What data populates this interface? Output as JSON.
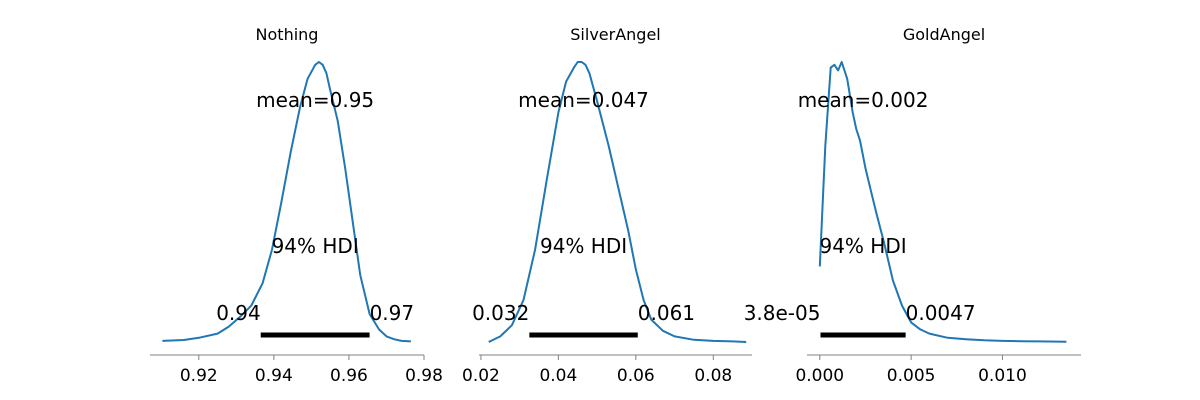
{
  "chart_data": [
    {
      "type": "line",
      "title": "Nothing",
      "mean_label": "mean=0.95",
      "hdi_label": "94% HDI",
      "hdi_low_label": "0.94",
      "hdi_high_label": "0.97",
      "hdi": [
        0.9365,
        0.9655
      ],
      "xlim": [
        0.907,
        0.98
      ],
      "ticks": [
        0.92,
        0.94,
        0.96,
        0.98
      ],
      "tick_labels": [
        "0.92",
        "0.94",
        "0.96",
        "0.98"
      ],
      "color": "#1f77b4",
      "density": {
        "x": [
          0.9103,
          0.916,
          0.92,
          0.925,
          0.928,
          0.931,
          0.934,
          0.937,
          0.9395,
          0.942,
          0.9445,
          0.947,
          0.949,
          0.951,
          0.952,
          0.953,
          0.954,
          0.955,
          0.957,
          0.959,
          0.961,
          0.963,
          0.9655,
          0.968,
          0.97,
          0.972,
          0.974,
          0.9765
        ],
        "y": [
          0.004,
          0.007,
          0.015,
          0.03,
          0.055,
          0.09,
          0.13,
          0.21,
          0.33,
          0.5,
          0.68,
          0.84,
          0.94,
          0.99,
          1.0,
          0.99,
          0.96,
          0.9,
          0.79,
          0.62,
          0.43,
          0.24,
          0.1,
          0.045,
          0.02,
          0.01,
          0.004,
          0.002
        ]
      }
    },
    {
      "type": "line",
      "title": "SilverAngel",
      "mean_label": "mean=0.047",
      "hdi_label": "94% HDI",
      "hdi_low_label": "0.032",
      "hdi_high_label": "0.061",
      "hdi": [
        0.0325,
        0.0605
      ],
      "xlim": [
        0.0195,
        0.09
      ],
      "ticks": [
        0.02,
        0.04,
        0.06,
        0.08
      ],
      "tick_labels": [
        "0.02",
        "0.04",
        "0.06",
        "0.08"
      ],
      "color": "#1f77b4",
      "density": {
        "x": [
          0.022,
          0.025,
          0.028,
          0.031,
          0.034,
          0.037,
          0.04,
          0.042,
          0.044,
          0.045,
          0.046,
          0.047,
          0.048,
          0.05,
          0.053,
          0.056,
          0.058,
          0.06,
          0.062,
          0.064,
          0.067,
          0.07,
          0.075,
          0.08,
          0.085,
          0.0885
        ],
        "y": [
          0.0,
          0.02,
          0.06,
          0.15,
          0.33,
          0.58,
          0.82,
          0.93,
          0.98,
          1.0,
          1.0,
          0.99,
          0.96,
          0.86,
          0.7,
          0.52,
          0.4,
          0.26,
          0.15,
          0.08,
          0.04,
          0.02,
          0.008,
          0.004,
          0.002,
          0.0
        ]
      }
    },
    {
      "type": "line",
      "title": "GoldAngel",
      "mean_label": "mean=0.002",
      "hdi_label": "94% HDI",
      "hdi_low_label": "3.8e-05",
      "hdi_high_label": "0.0047",
      "hdi": [
        3.8e-05,
        0.0047
      ],
      "xlim": [
        -0.0007,
        0.0143
      ],
      "ticks": [
        0.0,
        0.005,
        0.01
      ],
      "tick_labels": [
        "0.000",
        "0.005",
        "0.010"
      ],
      "color": "#1f77b4",
      "density": {
        "x": [
          0.0,
          0.0003,
          0.0006,
          0.0008,
          0.001,
          0.0012,
          0.0015,
          0.0018,
          0.002,
          0.0022,
          0.0025,
          0.0028,
          0.0031,
          0.0035,
          0.004,
          0.0045,
          0.005,
          0.0055,
          0.006,
          0.007,
          0.008,
          0.009,
          0.01,
          0.011,
          0.012,
          0.0135
        ],
        "y": [
          0.27,
          0.7,
          0.98,
          0.99,
          0.97,
          1.0,
          0.94,
          0.82,
          0.76,
          0.72,
          0.62,
          0.54,
          0.46,
          0.36,
          0.22,
          0.13,
          0.07,
          0.045,
          0.03,
          0.015,
          0.01,
          0.006,
          0.004,
          0.003,
          0.002,
          0.001
        ]
      }
    }
  ]
}
